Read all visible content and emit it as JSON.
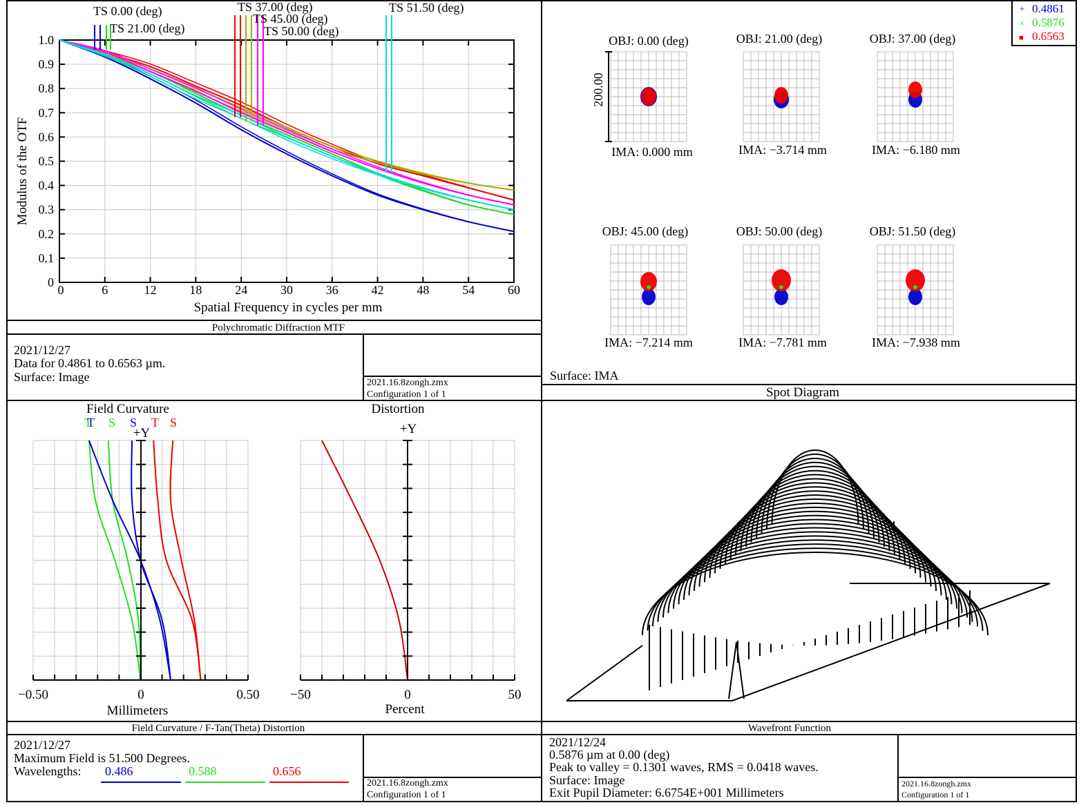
{
  "colors": {
    "blue": "#0000cc",
    "green": "#22dd22",
    "red": "#ee0000",
    "darkred": "#cc0000",
    "mtf_series": [
      "#0000cc",
      "#22dd22",
      "#ee0000",
      "#aaaa00",
      "#ff00ff",
      "#00dddd"
    ]
  },
  "mtf": {
    "panel_title": "Polychromatic Diffraction MTF",
    "date": "2021/12/27",
    "line2": "Data for 0.4861 to 0.6563 µm.",
    "line3": "Surface: Image",
    "file": "2021.16.8zongh.zmx",
    "config": "Configuration 1 of 1",
    "xlabel": "Spatial Frequency in cycles per mm",
    "ylabel": "Modulus of the OTF",
    "field_labels": [
      "TS 0.00 (deg)",
      "TS 21.00 (deg)",
      "TS 37.00 (deg)",
      "TS 45.00 (deg)",
      "TS 50.00 (deg)",
      "TS 51.50 (deg)"
    ]
  },
  "spot": {
    "panel_title": "Spot Diagram",
    "surface": "Surface: IMA",
    "scale_label": "200.00",
    "legend": [
      {
        "label": "0.4861",
        "marker": "+",
        "color": "#0000cc"
      },
      {
        "label": "0.5876",
        "marker": "×",
        "color": "#22dd22"
      },
      {
        "label": "0.6563",
        "marker": "■",
        "color": "#ee0000"
      }
    ],
    "fields": [
      {
        "obj": "OBJ: 0.00 (deg)",
        "ima": "IMA: 0.000 mm"
      },
      {
        "obj": "OBJ: 21.00 (deg)",
        "ima": "IMA: −3.714 mm"
      },
      {
        "obj": "OBJ: 37.00 (deg)",
        "ima": "IMA: −6.180 mm"
      },
      {
        "obj": "OBJ: 45.00 (deg)",
        "ima": "IMA: −7.214 mm"
      },
      {
        "obj": "OBJ: 50.00 (deg)",
        "ima": "IMA: −7.781 mm"
      },
      {
        "obj": "OBJ: 51.50 (deg)",
        "ima": "IMA: −7.938 mm"
      }
    ]
  },
  "fc": {
    "panel_title": "Field Curvature / F-Tan(Theta) Distortion",
    "fc_title": "Field Curvature",
    "dist_title": "Distortion",
    "plus_y": "+Y",
    "fc_xlabel": "Millimeters",
    "dist_xlabel": "Percent",
    "fc_ticks": [
      "−0.50",
      "0",
      "0.50"
    ],
    "dist_ticks": [
      "−50",
      "0",
      "50"
    ],
    "ts_labels": [
      {
        "t": "T",
        "s": "S",
        "color": "#22dd22"
      },
      {
        "t": "T",
        "s": "S",
        "color": "#0000cc"
      },
      {
        "t": "T",
        "s": "S",
        "color": "#ee0000"
      }
    ],
    "date": "2021/12/27",
    "line2": "Maximum Field is 51.500 Degrees.",
    "wl_label": "Wavelengths:",
    "wavelengths": [
      {
        "label": "0.486",
        "color": "#0000cc"
      },
      {
        "label": "0.588",
        "color": "#22dd22"
      },
      {
        "label": "0.656",
        "color": "#ee0000"
      }
    ],
    "file": "2021.16.8zongh.zmx",
    "config": "Configuration 1 of 1"
  },
  "wf": {
    "panel_title": "Wavefront Function",
    "date": "2021/12/24",
    "line2": "0.5876 µm at 0.00 (deg)",
    "line3": "Peak to valley = 0.1301 waves, RMS = 0.0418 waves.",
    "line4": "Surface: Image",
    "line5": "Exit Pupil Diameter: 6.6754E+001 Millimeters",
    "file": "2021.16.8zongh.zmx",
    "config": "Configuration 1 of 1"
  },
  "chart_data": [
    {
      "type": "line",
      "title": "Polychromatic Diffraction MTF",
      "xlabel": "Spatial Frequency in cycles per mm",
      "ylabel": "Modulus of the OTF",
      "xlim": [
        0,
        60
      ],
      "ylim": [
        0,
        1.0
      ],
      "xticks": [
        "0",
        "6",
        "12",
        "18",
        "24",
        "30",
        "36",
        "42",
        "48",
        "54",
        "60"
      ],
      "yticks": [
        "0",
        "0.1",
        "0.2",
        "0.3",
        "0.4",
        "0.5",
        "0.6",
        "0.7",
        "0.8",
        "0.9",
        "1.0"
      ],
      "x": [
        0,
        6,
        12,
        18,
        24,
        30,
        36,
        42,
        48,
        54,
        60
      ],
      "series": [
        {
          "name": "TS 0.00 (deg)",
          "color": "#0000cc",
          "values": [
            1.0,
            0.93,
            0.84,
            0.74,
            0.63,
            0.53,
            0.44,
            0.36,
            0.3,
            0.25,
            0.21
          ]
        },
        {
          "name": "TS 21.00 (deg)",
          "color": "#22dd22",
          "values": [
            1.0,
            0.94,
            0.87,
            0.78,
            0.69,
            0.61,
            0.53,
            0.45,
            0.38,
            0.32,
            0.28
          ]
        },
        {
          "name": "TS 37.00 (deg)",
          "color": "#ee0000",
          "values": [
            1.0,
            0.95,
            0.89,
            0.81,
            0.73,
            0.64,
            0.56,
            0.49,
            0.44,
            0.39,
            0.34
          ]
        },
        {
          "name": "TS 45.00 (deg)",
          "color": "#aaaa00",
          "values": [
            1.0,
            0.95,
            0.88,
            0.8,
            0.72,
            0.64,
            0.56,
            0.5,
            0.45,
            0.41,
            0.38
          ]
        },
        {
          "name": "TS 50.00 (deg)",
          "color": "#ff00ff",
          "values": [
            1.0,
            0.95,
            0.87,
            0.79,
            0.7,
            0.62,
            0.54,
            0.47,
            0.41,
            0.36,
            0.32
          ]
        },
        {
          "name": "TS 51.50 (deg)",
          "color": "#00dddd",
          "values": [
            1.0,
            0.94,
            0.86,
            0.77,
            0.69,
            0.6,
            0.52,
            0.45,
            0.39,
            0.34,
            0.3
          ]
        }
      ]
    },
    {
      "type": "line",
      "title": "Field Curvature",
      "xlabel": "Millimeters",
      "xlim": [
        -0.5,
        0.5
      ],
      "xticks": [
        "−0.50",
        "0",
        "0.50"
      ],
      "y_fraction": [
        0,
        0.25,
        0.5,
        0.75,
        1.0
      ],
      "series": [
        {
          "name": "T 0.588",
          "color": "#22dd22",
          "values": [
            0.0,
            -0.04,
            -0.12,
            -0.21,
            -0.24
          ]
        },
        {
          "name": "S 0.588",
          "color": "#22dd22",
          "values": [
            0.0,
            -0.01,
            -0.06,
            -0.13,
            -0.15
          ]
        },
        {
          "name": "T 0.486",
          "color": "#0000cc",
          "values": [
            0.14,
            0.09,
            0.0,
            -0.13,
            -0.24
          ]
        },
        {
          "name": "S 0.486",
          "color": "#0000cc",
          "values": [
            0.14,
            0.1,
            0.0,
            -0.04,
            -0.04
          ]
        },
        {
          "name": "T 0.656",
          "color": "#ee0000",
          "values": [
            0.28,
            0.24,
            0.12,
            0.08,
            0.06
          ]
        },
        {
          "name": "S 0.656",
          "color": "#ee0000",
          "values": [
            0.28,
            0.25,
            0.19,
            0.14,
            0.15
          ]
        }
      ]
    },
    {
      "type": "line",
      "title": "Distortion",
      "xlabel": "Percent",
      "xlim": [
        -50,
        50
      ],
      "xticks": [
        "−50",
        "0",
        "50"
      ],
      "y_fraction": [
        0,
        0.25,
        0.5,
        0.75,
        1.0
      ],
      "series": [
        {
          "name": "Distortion",
          "color": "#cc0000",
          "values": [
            0,
            -4,
            -13,
            -26,
            -40
          ]
        }
      ]
    }
  ]
}
